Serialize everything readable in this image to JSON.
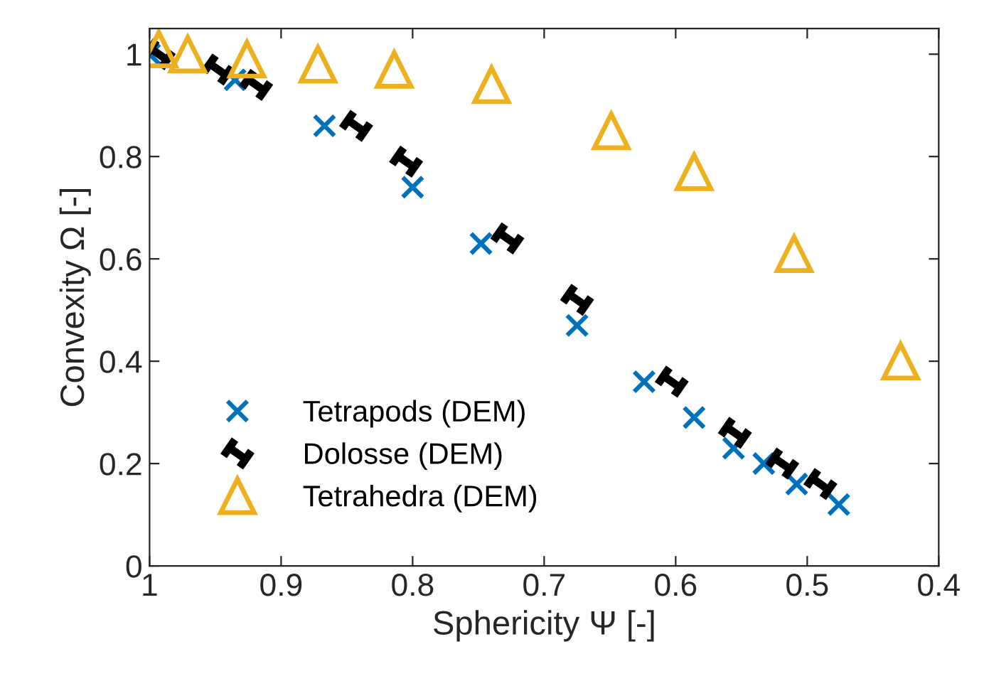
{
  "chart_data": {
    "type": "scatter",
    "xlabel": "Sphericity Ψ [-]",
    "ylabel": "Convexity Ω [-]",
    "xlim": [
      1,
      0.4
    ],
    "ylim": [
      0,
      1.05
    ],
    "xticks": [
      1,
      0.9,
      0.8,
      0.7,
      0.6,
      0.5,
      0.4
    ],
    "yticks": [
      0,
      0.2,
      0.4,
      0.6,
      0.8,
      1
    ],
    "grid": false,
    "legend": "bottom left",
    "series": [
      {
        "name": "Tetrapods (DEM)",
        "color": "#0072bd",
        "marker": "cross",
        "x": [
          1.0,
          0.935,
          0.867,
          0.8,
          0.748,
          0.675,
          0.624,
          0.586,
          0.556,
          0.533,
          0.508,
          0.476
        ],
        "values": [
          1.0,
          0.95,
          0.86,
          0.74,
          0.63,
          0.47,
          0.36,
          0.29,
          0.23,
          0.2,
          0.16,
          0.12
        ]
      },
      {
        "name": "Dolosse (DEM)",
        "color": "#000000",
        "x": [
          0.993,
          0.948,
          0.919,
          0.843,
          0.805,
          0.728,
          0.675,
          0.603,
          0.555,
          0.519,
          0.49
        ],
        "values": [
          1.0,
          0.97,
          0.94,
          0.86,
          0.79,
          0.64,
          0.52,
          0.36,
          0.26,
          0.2,
          0.16
        ]
      },
      {
        "name": "Tetrahedra (DEM)",
        "color": "#edb120",
        "marker": "triangle",
        "x": [
          0.993,
          0.971,
          0.926,
          0.872,
          0.814,
          0.74,
          0.649,
          0.586,
          0.51,
          0.429
        ],
        "values": [
          1.01,
          1.0,
          0.99,
          0.98,
          0.97,
          0.94,
          0.85,
          0.77,
          0.61,
          0.4
        ]
      }
    ]
  }
}
